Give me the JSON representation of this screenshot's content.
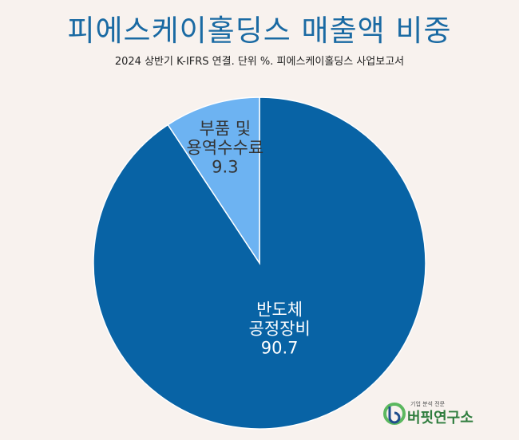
{
  "title": "피에스케이홀딩스 매출액 비중",
  "subtitle": "2024 상반기 K-IFRS 연결. 단위 %. 피에스케이홀딩스 사업보고서",
  "logo": {
    "tagline": "기업 분석 전문",
    "name": "버핏연구소"
  },
  "colors": {
    "background": "#f8f2ee",
    "title": "#1a6aa3",
    "slice_large": "#0863a5",
    "slice_small": "#6db3f2"
  },
  "chart_data": {
    "type": "pie",
    "title": "피에스케이홀딩스 매출액 비중",
    "subtitle": "2024 상반기 K-IFRS 연결. 단위 %. 피에스케이홀딩스 사업보고서",
    "start": "12 o'clock",
    "direction": "clockwise",
    "slices": [
      {
        "label_lines": [
          "반도체",
          "공정장비"
        ],
        "value": 90.7,
        "value_label": "90.7",
        "color": "#0863a5",
        "label_color": "#ffffff"
      },
      {
        "label_lines": [
          "부품 및",
          "용역수수료"
        ],
        "value": 9.3,
        "value_label": "9.3",
        "color": "#6db3f2",
        "label_color": "#333333"
      }
    ]
  }
}
